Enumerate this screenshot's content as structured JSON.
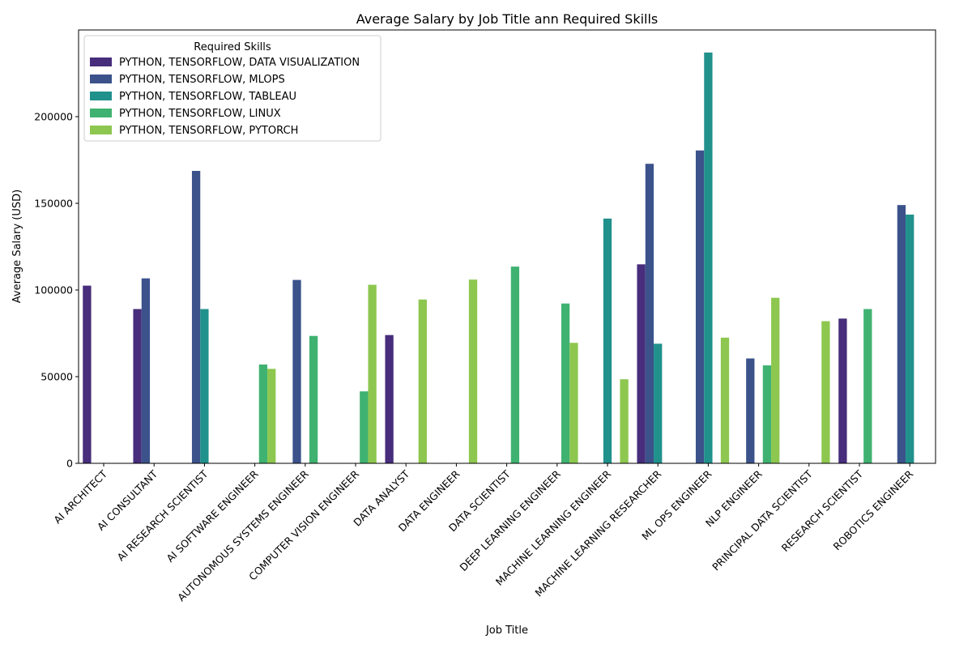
{
  "chart_data": {
    "type": "bar",
    "title": "Average Salary by Job Title ann Required Skills",
    "xlabel": "Job Title",
    "ylabel": "Average Salary (USD)",
    "ylim": [
      0,
      250000
    ],
    "yticks": [
      0,
      50000,
      100000,
      150000,
      200000
    ],
    "grid": false,
    "legend": {
      "title": "Required Skills",
      "placement": "top-left"
    },
    "categories": [
      "AI ARCHITECT",
      "AI CONSULTANT",
      "AI RESEARCH SCIENTIST",
      "AI SOFTWARE ENGINEER",
      "AUTONOMOUS SYSTEMS ENGINEER",
      "COMPUTER VISION ENGINEER",
      "DATA ANALYST",
      "DATA ENGINEER",
      "DATA SCIENTIST",
      "DEEP LEARNING ENGINEER",
      "MACHINE LEARNING ENGINEER",
      "MACHINE LEARNING RESEARCHER",
      "ML OPS ENGINEER",
      "NLP ENGINEER",
      "PRINCIPAL DATA SCIENTIST",
      "RESEARCH SCIENTIST",
      "ROBOTICS ENGINEER"
    ],
    "series": [
      {
        "name": "PYTHON, TENSORFLOW, DATA VISUALIZATION",
        "color": "#472d7b",
        "values": [
          102500,
          89000,
          null,
          null,
          null,
          null,
          74000,
          null,
          null,
          null,
          null,
          114800,
          null,
          null,
          null,
          83500,
          null
        ]
      },
      {
        "name": "PYTHON, TENSORFLOW, MLOPS",
        "color": "#3b528b",
        "values": [
          null,
          106700,
          168700,
          null,
          105800,
          null,
          null,
          null,
          null,
          null,
          null,
          172800,
          180500,
          60500,
          null,
          null,
          149000
        ]
      },
      {
        "name": "PYTHON, TENSORFLOW, TABLEAU",
        "color": "#21918c",
        "values": [
          null,
          null,
          89000,
          null,
          null,
          null,
          null,
          null,
          null,
          null,
          141200,
          69000,
          237000,
          null,
          null,
          null,
          143500
        ]
      },
      {
        "name": "PYTHON, TENSORFLOW, LINUX",
        "color": "#3fb271",
        "values": [
          null,
          null,
          null,
          57000,
          73500,
          41500,
          null,
          null,
          113500,
          92200,
          null,
          null,
          null,
          56500,
          null,
          89000,
          null
        ]
      },
      {
        "name": "PYTHON, TENSORFLOW, PYTORCH",
        "color": "#8dc74f",
        "values": [
          null,
          null,
          null,
          54500,
          null,
          103000,
          94500,
          106000,
          null,
          69500,
          48500,
          null,
          72500,
          95500,
          82000,
          null,
          null
        ]
      }
    ]
  }
}
